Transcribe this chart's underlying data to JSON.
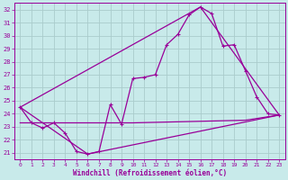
{
  "background_color": "#c8eaea",
  "grid_color": "#aacccc",
  "line_color": "#990099",
  "xlabel": "Windchill (Refroidissement éolien,°C)",
  "ylim": [
    20.5,
    32.5
  ],
  "xlim": [
    -0.5,
    23.5
  ],
  "yticks": [
    21,
    22,
    23,
    24,
    25,
    26,
    27,
    28,
    29,
    30,
    31,
    32
  ],
  "xticks": [
    0,
    1,
    2,
    3,
    4,
    5,
    6,
    7,
    8,
    9,
    10,
    11,
    12,
    13,
    14,
    15,
    16,
    17,
    18,
    19,
    20,
    21,
    22,
    23
  ],
  "series1_x": [
    0,
    1,
    2,
    3,
    4,
    5,
    6,
    7,
    8,
    9,
    10,
    11,
    12,
    13,
    14,
    15,
    16,
    17,
    18,
    19,
    20,
    21,
    22,
    23
  ],
  "series1_y": [
    24.5,
    23.3,
    22.9,
    23.3,
    22.5,
    21.1,
    20.9,
    21.1,
    24.7,
    23.2,
    26.7,
    26.8,
    27.0,
    29.3,
    30.1,
    31.6,
    32.2,
    31.7,
    29.2,
    29.3,
    27.3,
    25.3,
    24.0,
    23.9
  ],
  "series2_x": [
    0,
    6,
    23
  ],
  "series2_y": [
    24.5,
    20.9,
    23.9
  ],
  "series3_x": [
    0,
    16,
    23
  ],
  "series3_y": [
    24.5,
    32.2,
    23.9
  ],
  "series4_x": [
    0,
    10,
    20,
    23
  ],
  "series4_y": [
    23.3,
    23.3,
    23.5,
    23.9
  ]
}
